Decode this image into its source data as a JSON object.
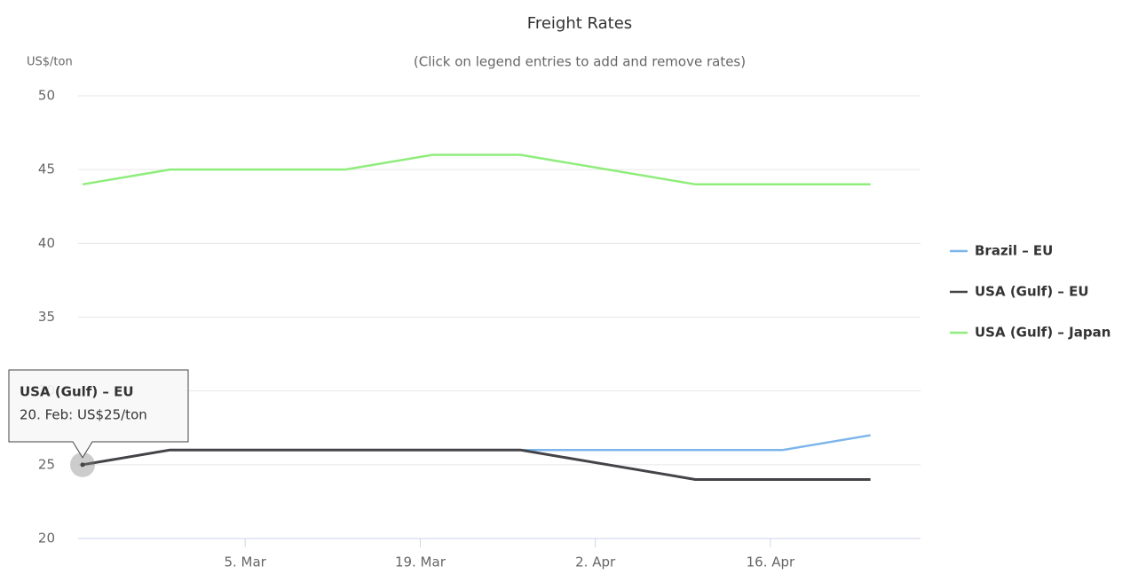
{
  "chart_data": {
    "type": "line",
    "title": "Freight Rates",
    "subtitle": "(Click on legend entries to add and remove rates)",
    "y_axis_label": "US$/ton",
    "x": [
      "02-20",
      "02-27",
      "03-06",
      "03-13",
      "03-20",
      "03-27",
      "04-03",
      "04-10",
      "04-17",
      "04-24"
    ],
    "xlim": [
      "02-20",
      "04-28"
    ],
    "xticks": [
      {
        "value": "03-05",
        "label": "5. Mar"
      },
      {
        "value": "03-19",
        "label": "19. Mar"
      },
      {
        "value": "04-02",
        "label": "2. Apr"
      },
      {
        "value": "04-16",
        "label": "16. Apr"
      }
    ],
    "ylim": [
      20,
      50
    ],
    "yticks": [
      20,
      25,
      30,
      35,
      40,
      45,
      50
    ],
    "grid": true,
    "legend": "right",
    "series": [
      {
        "name": "Brazil – EU",
        "color": "#7cb5ec",
        "values": [
          25,
          26,
          26,
          26,
          26,
          26,
          26,
          26,
          26,
          27
        ]
      },
      {
        "name": "USA (Gulf) – EU",
        "color": "#434348",
        "values": [
          25,
          26,
          26,
          26,
          26,
          26,
          25,
          24,
          24,
          24
        ]
      },
      {
        "name": "USA (Gulf) – Japan",
        "color": "#90ed7d",
        "values": [
          44,
          45,
          45,
          45,
          46,
          46,
          45,
          44,
          44,
          44
        ]
      }
    ],
    "tooltip": {
      "title": "USA (Gulf) – EU",
      "text": "20. Feb: US$25/ton"
    }
  }
}
